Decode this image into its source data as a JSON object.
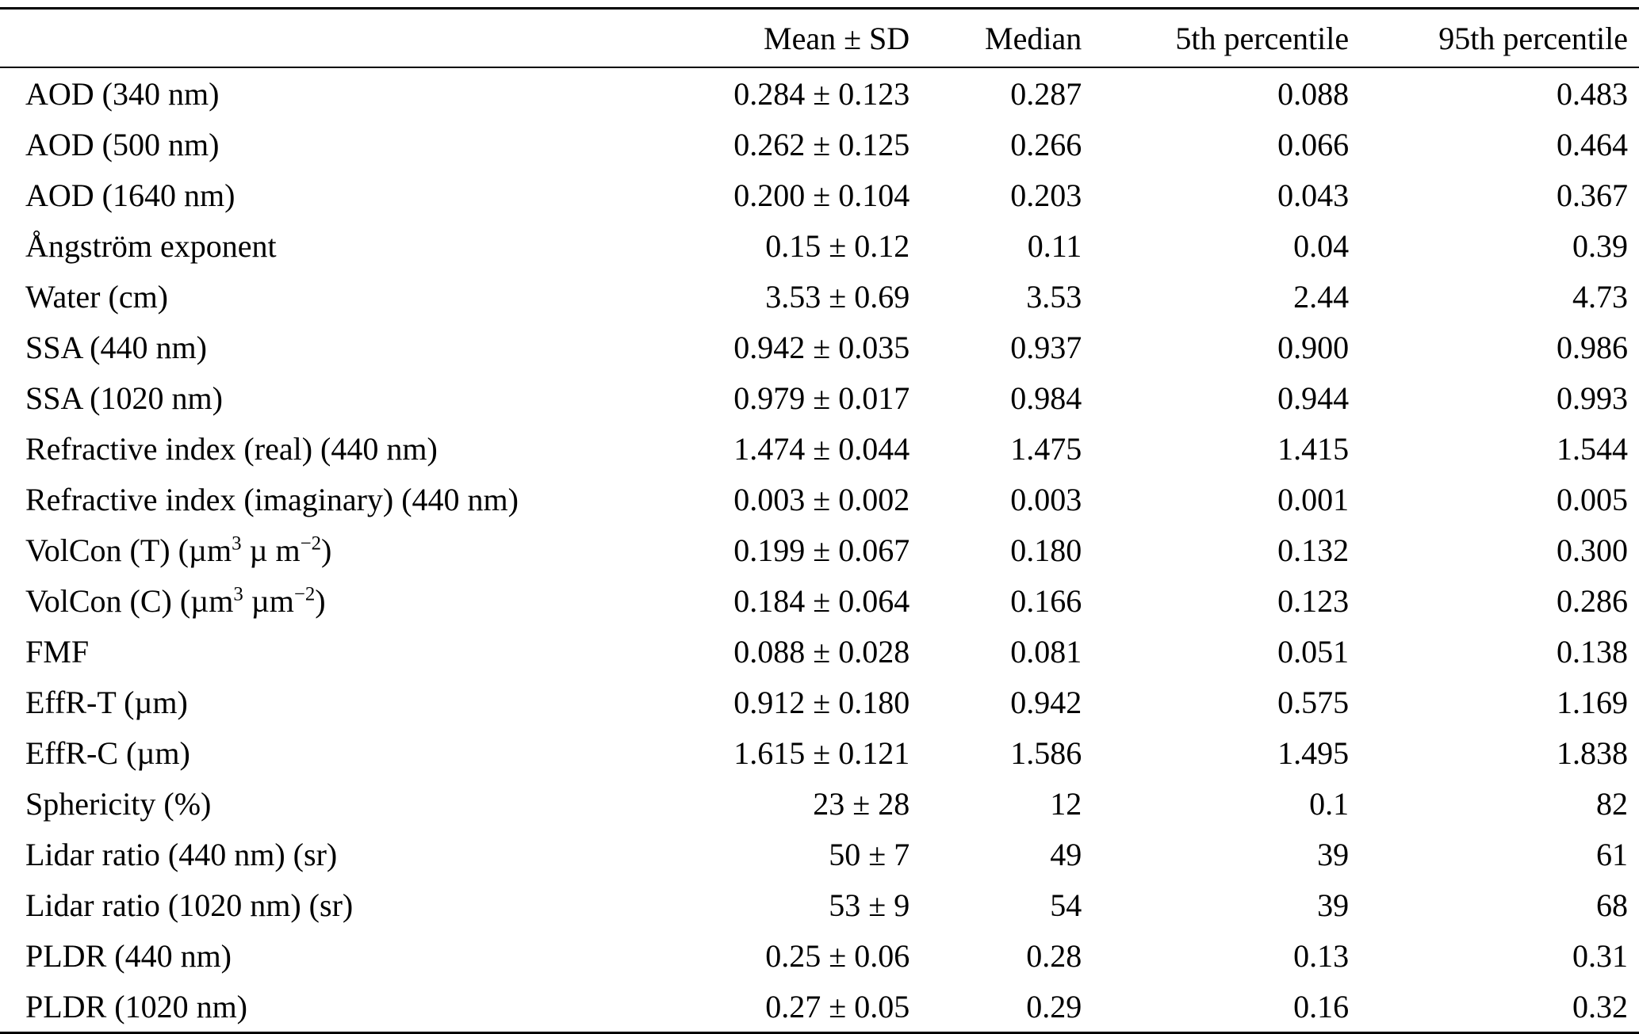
{
  "table": {
    "columns": [
      "Mean ± SD",
      "Median",
      "5th percentile",
      "95th percentile"
    ],
    "rows": [
      {
        "label": "AOD (340 nm)",
        "values": [
          "0.284 ± 0.123",
          "0.287",
          "0.088",
          "0.483"
        ]
      },
      {
        "label": "AOD (500 nm)",
        "values": [
          "0.262 ± 0.125",
          "0.266",
          "0.066",
          "0.464"
        ]
      },
      {
        "label": "AOD (1640 nm)",
        "values": [
          "0.200 ± 0.104",
          "0.203",
          "0.043",
          "0.367"
        ]
      },
      {
        "label": "Ångström exponent",
        "values": [
          "0.15 ± 0.12",
          "0.11",
          "0.04",
          "0.39"
        ]
      },
      {
        "label": "Water (cm)",
        "values": [
          "3.53 ± 0.69",
          "3.53",
          "2.44",
          "4.73"
        ]
      },
      {
        "label": "SSA (440 nm)",
        "values": [
          "0.942 ± 0.035",
          "0.937",
          "0.900",
          "0.986"
        ]
      },
      {
        "label": "SSA (1020 nm)",
        "values": [
          "0.979 ± 0.017",
          "0.984",
          "0.944",
          "0.993"
        ]
      },
      {
        "label": "Refractive index (real) (440 nm)",
        "values": [
          "1.474 ± 0.044",
          "1.475",
          "1.415",
          "1.544"
        ]
      },
      {
        "label": "Refractive index (imaginary) (440 nm)",
        "values": [
          "0.003 ± 0.002",
          "0.003",
          "0.001",
          "0.005"
        ]
      },
      {
        "label_parts": [
          "VolCon (T) (µm",
          "3",
          " µ m",
          "−2",
          ")"
        ],
        "values": [
          "0.199 ± 0.067",
          "0.180",
          "0.132",
          "0.300"
        ]
      },
      {
        "label_parts": [
          "VolCon (C) (µm",
          "3",
          " µm",
          "−2",
          ")"
        ],
        "values": [
          "0.184 ± 0.064",
          "0.166",
          "0.123",
          "0.286"
        ]
      },
      {
        "label": "FMF",
        "values": [
          "0.088 ± 0.028",
          "0.081",
          "0.051",
          "0.138"
        ]
      },
      {
        "label": "EffR-T (µm)",
        "values": [
          "0.912 ± 0.180",
          "0.942",
          "0.575",
          "1.169"
        ]
      },
      {
        "label": "EffR-C (µm)",
        "values": [
          "1.615 ± 0.121",
          "1.586",
          "1.495",
          "1.838"
        ]
      },
      {
        "label": "Sphericity (%)",
        "values": [
          "23 ± 28",
          "12",
          "0.1",
          "82"
        ]
      },
      {
        "label": "Lidar ratio (440 nm) (sr)",
        "values": [
          "50 ± 7",
          "49",
          "39",
          "61"
        ]
      },
      {
        "label": "Lidar ratio (1020 nm) (sr)",
        "values": [
          "53 ± 9",
          "54",
          "39",
          "68"
        ]
      },
      {
        "label": "PLDR (440 nm)",
        "values": [
          "0.25 ± 0.06",
          "0.28",
          "0.13",
          "0.31"
        ]
      },
      {
        "label": "PLDR (1020 nm)",
        "values": [
          "0.27 ± 0.05",
          "0.29",
          "0.16",
          "0.32"
        ]
      }
    ]
  }
}
